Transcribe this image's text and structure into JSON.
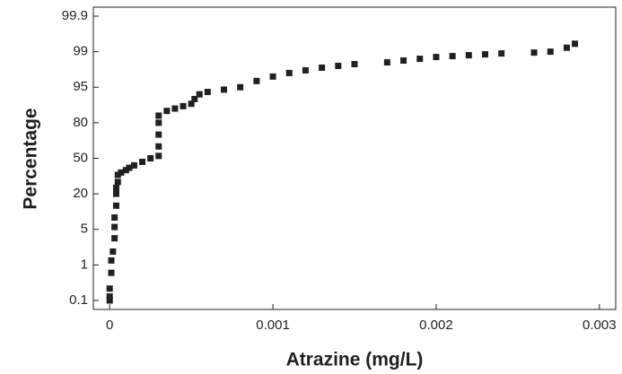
{
  "chart_data": {
    "type": "scatter",
    "xlabel": "Atrazine (mg/L)",
    "ylabel": "Percentage",
    "xlim": [
      -0.0001,
      0.0031
    ],
    "xticks": [
      0,
      0.001,
      0.002,
      0.003
    ],
    "ylim": [
      0.1,
      99.9
    ],
    "yticks": [
      0.1,
      1,
      5,
      20,
      50,
      80,
      95,
      99,
      99.9
    ],
    "yscale": "probability",
    "color": "#231f20",
    "x": [
      0,
      0,
      0,
      1e-05,
      1e-05,
      2e-05,
      3e-05,
      3e-05,
      3e-05,
      4e-05,
      4e-05,
      4e-05,
      5e-05,
      5e-05,
      7e-05,
      0.0001,
      0.00012,
      0.00015,
      0.0002,
      0.00025,
      0.0003,
      0.0003,
      0.0003,
      0.0003,
      0.0003,
      0.00035,
      0.0004,
      0.00045,
      0.0005,
      0.00052,
      0.00055,
      0.0006,
      0.0007,
      0.0008,
      0.0009,
      0.001,
      0.0011,
      0.0012,
      0.0013,
      0.0014,
      0.0015,
      0.0017,
      0.0018,
      0.0019,
      0.002,
      0.0021,
      0.0022,
      0.0023,
      0.0024,
      0.0026,
      0.0027,
      0.0028,
      0.00285
    ],
    "values": [
      0.1,
      0.2,
      0.4,
      0.8,
      1.5,
      2.5,
      4,
      6,
      10,
      15,
      20,
      25,
      30,
      36,
      38,
      40,
      42,
      44,
      47,
      50,
      52,
      60,
      70,
      80,
      83,
      85,
      86,
      87,
      88,
      90,
      92,
      93,
      94,
      95,
      95.7,
      96.2,
      96.6,
      96.9,
      97.2,
      97.4,
      97.6,
      97.8,
      98,
      98.2,
      98.4,
      98.5,
      98.6,
      98.7,
      98.8,
      98.9,
      99,
      99.1,
      99.2
    ]
  }
}
